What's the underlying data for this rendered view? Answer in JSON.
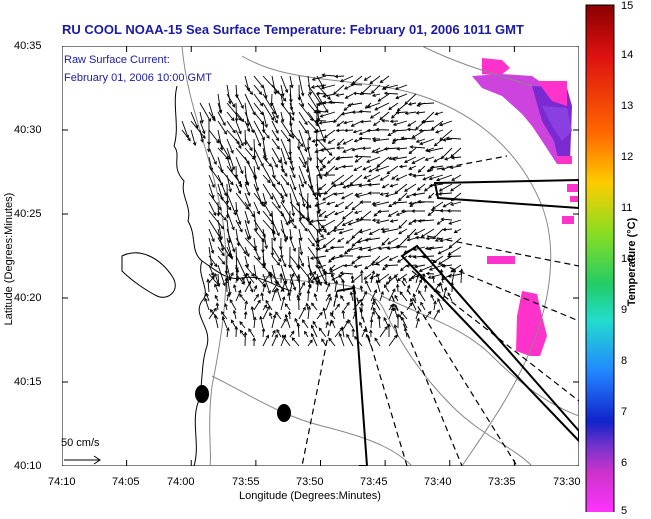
{
  "title": "RU COOL  NOAA-15  Sea Surface Temperature:  February 01, 2006 1011 GMT",
  "inset": {
    "line1": "Raw Surface Current:",
    "line2": "February 01, 2006 10:00 GMT"
  },
  "scale_label": "50 cm/s",
  "axes": {
    "xlabel": "Longitude (Degrees:Minutes)",
    "ylabel": "Latitude (Degrees:Minutes)",
    "x_ticks": [
      "74:10",
      "74:05",
      "74:00",
      "73:55",
      "73:50",
      "73:45",
      "73:40",
      "73:35",
      "73:30"
    ],
    "y_ticks": [
      "40:35",
      "40:30",
      "40:25",
      "40:20",
      "40:15",
      "40:10"
    ]
  },
  "colorbar": {
    "label": "Temperature (°C)",
    "min": 5,
    "max": 15,
    "ticks": [
      "15",
      "14",
      "13",
      "12",
      "11",
      "10",
      "9",
      "8",
      "7",
      "6",
      "5"
    ]
  },
  "colors": {
    "title_blue": "#1a1aa8",
    "sst_warm_patch": "#ff33cc"
  }
}
